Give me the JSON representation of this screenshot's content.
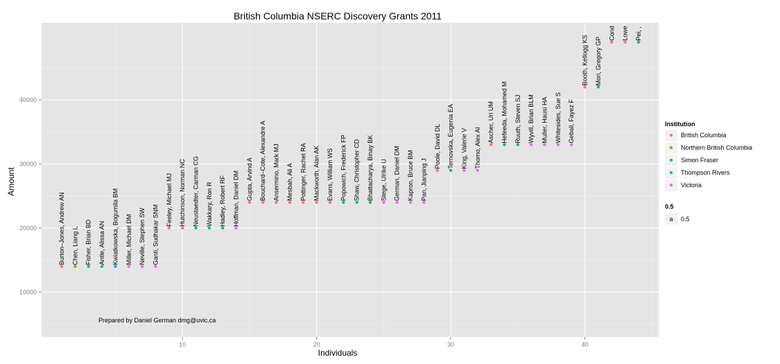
{
  "chart_data": {
    "type": "scatter",
    "title": "British Columbia NSERC Discovery Grants 2011",
    "xlabel": "Individuals",
    "ylabel": "Amount",
    "xlim": [
      -0.5,
      45.5
    ],
    "ylim": [
      3000,
      52000
    ],
    "x_ticks": [
      10,
      20,
      30,
      40
    ],
    "y_ticks": [
      10000,
      20000,
      30000,
      40000
    ],
    "grid": true,
    "legend_position": "right",
    "annotation": "Prepared by Daniel German dmg@uvic.ca",
    "institutions": [
      {
        "name": "British Columbia",
        "color": "#F8766D"
      },
      {
        "name": "Northern British Columbia",
        "color": "#A3A500"
      },
      {
        "name": "Simon Fraser",
        "color": "#00BF7D"
      },
      {
        "name": "Thompson Rivers",
        "color": "#00B0F6"
      },
      {
        "name": "Victoria",
        "color": "#E76BF3"
      }
    ],
    "legend": {
      "color_title": "Institution",
      "alpha_title": "0.5",
      "alpha_key_glyph": "a",
      "alpha_label": "0.5"
    },
    "points": [
      {
        "x": 1,
        "y": 14000,
        "label": "Burton–Jones, Andrew AN",
        "institution": "British Columbia"
      },
      {
        "x": 2,
        "y": 14000,
        "label": "Chen, Liang L",
        "institution": "Northern British Columbia"
      },
      {
        "x": 3,
        "y": 14000,
        "label": "Fisher, Brian BD",
        "institution": "Simon Fraser"
      },
      {
        "x": 4,
        "y": 14000,
        "label": "Antle, Alissa AN",
        "institution": "Simon Fraser"
      },
      {
        "x": 5,
        "y": 14000,
        "label": "Kwiatkowska, Bogumila BM",
        "institution": "Thompson Rivers"
      },
      {
        "x": 6,
        "y": 14000,
        "label": "Miller, Michael DM",
        "institution": "Victoria"
      },
      {
        "x": 7,
        "y": 14000,
        "label": "Neville, Stephen SW",
        "institution": "Victoria"
      },
      {
        "x": 8,
        "y": 14000,
        "label": "Ganti, Sudhakar SNM",
        "institution": "Victoria"
      },
      {
        "x": 9,
        "y": 20000,
        "label": "Feeley, Michael MJ",
        "institution": "British Columbia"
      },
      {
        "x": 10,
        "y": 20000,
        "label": "Hutchinson, Norman NC",
        "institution": "British Columbia"
      },
      {
        "x": 11,
        "y": 20000,
        "label": "Neustaedter, Carman CG",
        "institution": "Simon Fraser"
      },
      {
        "x": 12,
        "y": 20000,
        "label": "Wakkary, Ron R",
        "institution": "Simon Fraser"
      },
      {
        "x": 13,
        "y": 20000,
        "label": "Hadley, Robert RF",
        "institution": "Simon Fraser"
      },
      {
        "x": 14,
        "y": 20000,
        "label": "Hoffman, Daniel DM",
        "institution": "Victoria"
      },
      {
        "x": 15,
        "y": 24000,
        "label": "Gupta, Arvind A",
        "institution": "British Columbia"
      },
      {
        "x": 16,
        "y": 24000,
        "label": "Bouchard–Cote, Alexandre A",
        "institution": "British Columbia"
      },
      {
        "x": 17,
        "y": 24000,
        "label": "Ansermino, Mark MJ",
        "institution": "British Columbia"
      },
      {
        "x": 18,
        "y": 24000,
        "label": "Mesbah, Ali A",
        "institution": "British Columbia"
      },
      {
        "x": 19,
        "y": 24000,
        "label": "Pottinger, Rachel RA",
        "institution": "British Columbia"
      },
      {
        "x": 20,
        "y": 24000,
        "label": "Mackworth, Alan AK",
        "institution": "British Columbia"
      },
      {
        "x": 21,
        "y": 24000,
        "label": "Evans, William WS",
        "institution": "British Columbia"
      },
      {
        "x": 22,
        "y": 24000,
        "label": "Popowich, Frederick FP",
        "institution": "Simon Fraser"
      },
      {
        "x": 23,
        "y": 24000,
        "label": "Shaw, Christopher CD",
        "institution": "Simon Fraser"
      },
      {
        "x": 24,
        "y": 24000,
        "label": "Bhattacharya, Binay BK",
        "institution": "Simon Fraser"
      },
      {
        "x": 25,
        "y": 24000,
        "label": "Stege, Ulrike U",
        "institution": "Victoria"
      },
      {
        "x": 26,
        "y": 24000,
        "label": "German, Daniel DM",
        "institution": "Victoria"
      },
      {
        "x": 27,
        "y": 24000,
        "label": "Kapron, Bruce BM",
        "institution": "Victoria"
      },
      {
        "x": 28,
        "y": 24000,
        "label": "Pan, Jianping J",
        "institution": "Victoria"
      },
      {
        "x": 29,
        "y": 29000,
        "label": "Poole, David DL",
        "institution": "British Columbia"
      },
      {
        "x": 30,
        "y": 29000,
        "label": "Ternovska, Eugenia EA",
        "institution": "Simon Fraser"
      },
      {
        "x": 31,
        "y": 29000,
        "label": "King, Valerie V",
        "institution": "Victoria"
      },
      {
        "x": 32,
        "y": 29000,
        "label": "Thomo, Alex AI",
        "institution": "Victoria"
      },
      {
        "x": 33,
        "y": 33000,
        "label": "Ascher, Uri UM",
        "institution": "British Columbia"
      },
      {
        "x": 34,
        "y": 33000,
        "label": "Hefeeda, Mohamed M",
        "institution": "Simon Fraser"
      },
      {
        "x": 35,
        "y": 33000,
        "label": "Ruuth, Steven SJ",
        "institution": "Simon Fraser"
      },
      {
        "x": 36,
        "y": 33000,
        "label": "Wyvill, Brian BLM",
        "institution": "Victoria"
      },
      {
        "x": 37,
        "y": 33000,
        "label": "Muller, Hausi HA",
        "institution": "Victoria"
      },
      {
        "x": 38,
        "y": 33000,
        "label": "Whitesides, Sue S",
        "institution": "Victoria"
      },
      {
        "x": 39,
        "y": 33000,
        "label": "Gebali, Fayez F",
        "institution": "Victoria"
      },
      {
        "x": 40,
        "y": 42000,
        "label": "Booth, Kellogg KS",
        "institution": "British Columbia"
      },
      {
        "x": 41,
        "y": 42000,
        "label": "Mori, Gregory GP",
        "institution": "Simon Fraser"
      },
      {
        "x": 42,
        "y": 49000,
        "label": "Cond",
        "institution": "British Columbia"
      },
      {
        "x": 43,
        "y": 49000,
        "label": "Lowe",
        "institution": "British Columbia"
      },
      {
        "x": 44,
        "y": 49000,
        "label": "Pei, ,",
        "institution": "Simon Fraser"
      }
    ]
  }
}
